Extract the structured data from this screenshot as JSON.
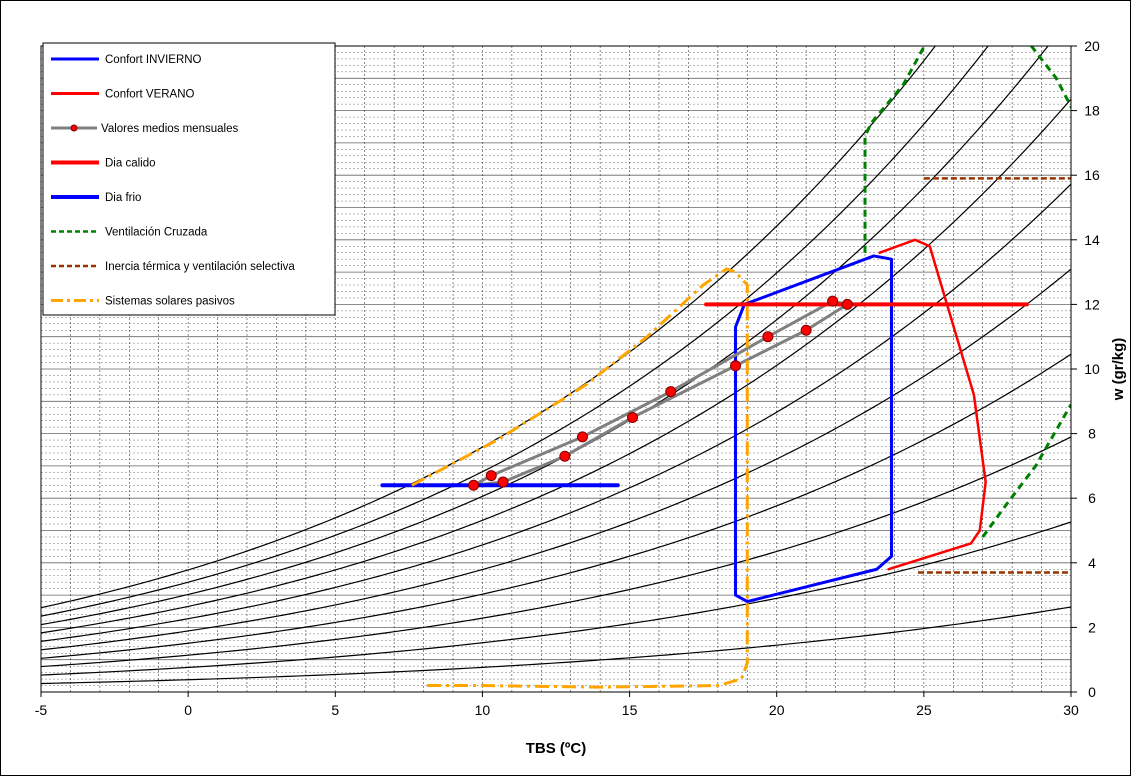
{
  "chart_data": {
    "type": "line",
    "title": "",
    "xlabel": "TBS (ºC)",
    "ylabel": "w (gr/kg)",
    "xlim": [
      -5,
      30
    ],
    "ylim": [
      0,
      20
    ],
    "x_ticks": [
      "-5",
      "0",
      "5",
      "10",
      "15",
      "20",
      "25",
      "30"
    ],
    "y_ticks": [
      "0",
      "2",
      "4",
      "6",
      "8",
      "10",
      "12",
      "14",
      "16",
      "18",
      "20"
    ],
    "grid": true,
    "legend_position": "top-left",
    "legend": [
      {
        "label": "Confort INVIERNO",
        "color": "#0000ff",
        "style": "solid"
      },
      {
        "label": "Confort VERANO",
        "color": "#ff0000",
        "style": "solid"
      },
      {
        "label": "Valores medios mensuales",
        "color": "#808080",
        "style": "marker-line",
        "marker_color": "#ff0000"
      },
      {
        "label": "Dia calido",
        "color": "#ff0000",
        "style": "thick"
      },
      {
        "label": "Dia frio",
        "color": "#0000ff",
        "style": "thick"
      },
      {
        "label": "Ventilación Cruzada",
        "color": "#008000",
        "style": "dashed"
      },
      {
        "label": "Inercia térmica y ventilación selectiva",
        "color": "#993300",
        "style": "dashed"
      },
      {
        "label": "Sistemas solares pasivos",
        "color": "#ffa500",
        "style": "dashdot"
      }
    ],
    "humidity_curves_w_at_0C": [
      0.38,
      0.76,
      1.14,
      1.51,
      1.89,
      2.27,
      2.65,
      3.02,
      3.4,
      3.78
    ],
    "series": [
      {
        "name": "Confort INVIERNO",
        "color": "#0000ff",
        "x": [
          18.6,
          18.6,
          18.9,
          23.3,
          23.9,
          23.9,
          23.4,
          19.0,
          18.6
        ],
        "y": [
          3.0,
          11.3,
          12.0,
          13.5,
          13.4,
          4.2,
          3.8,
          2.8,
          3.0
        ]
      },
      {
        "name": "Confort VERANO",
        "color": "#ff0000",
        "x": [
          23.5,
          24.7,
          25.2,
          26.7,
          27.1,
          26.9,
          26.6,
          23.8
        ],
        "y": [
          13.6,
          14.0,
          13.8,
          9.2,
          6.5,
          5.0,
          4.6,
          3.8
        ]
      },
      {
        "name": "Valores medios mensuales",
        "color": "#808080",
        "x": [
          9.7,
          10.3,
          13.4,
          16.4,
          19.7,
          21.9,
          22.4,
          21.0,
          18.6,
          15.1,
          12.8,
          10.7,
          9.7
        ],
        "y": [
          6.4,
          6.7,
          7.9,
          9.3,
          11.0,
          12.1,
          12.0,
          11.2,
          10.1,
          8.5,
          7.3,
          6.5,
          6.4
        ]
      },
      {
        "name": "Dia calido",
        "color": "#ff0000",
        "x": [
          17.6,
          28.5
        ],
        "y": [
          12.0,
          12.0
        ]
      },
      {
        "name": "Dia frio",
        "color": "#0000ff",
        "x": [
          6.6,
          14.6
        ],
        "y": [
          6.4,
          6.4
        ]
      },
      {
        "name": "Ventilación Cruzada",
        "color": "#008000",
        "x": [
          23.0,
          23.0,
          23.2,
          24.3,
          25.2
        ],
        "y": [
          13.6,
          17.2,
          17.6,
          18.8,
          20.3
        ]
      },
      {
        "name": "Ventilación Cruzada (2)",
        "color": "#008000",
        "x": [
          28.4,
          29.5,
          30.3
        ],
        "y": [
          20.3,
          19.0,
          17.6
        ]
      },
      {
        "name": "Ventilación Cruzada (3)",
        "color": "#008000",
        "x": [
          27.0,
          27.8,
          28.8,
          30.0
        ],
        "y": [
          4.8,
          5.8,
          7.0,
          8.9
        ]
      },
      {
        "name": "Inercia térmica y ventilación selectiva",
        "color": "#993300",
        "x": [
          25.0,
          30.0
        ],
        "y": [
          15.9,
          15.9
        ]
      },
      {
        "name": "Inercia térmica y ventilación selectiva (2)",
        "color": "#993300",
        "x": [
          24.8,
          30.0
        ],
        "y": [
          3.7,
          3.7
        ]
      },
      {
        "name": "Sistemas solares pasivos",
        "color": "#ffa500",
        "x": [
          7.6,
          10.5,
          13.5,
          15.6,
          17.5,
          18.3,
          18.6,
          19.0,
          19.0,
          18.8,
          18.0,
          14.0,
          10.0,
          8.1
        ],
        "y": [
          6.4,
          7.8,
          9.5,
          11.0,
          12.6,
          13.1,
          13.0,
          12.6,
          0.9,
          0.4,
          0.2,
          0.15,
          0.2,
          0.2
        ]
      }
    ],
    "points": {
      "name": "Valores medios mensuales",
      "color": "#ff0000",
      "x": [
        9.7,
        10.3,
        10.7,
        12.8,
        13.4,
        15.1,
        16.4,
        18.6,
        19.7,
        21.0,
        21.9,
        22.4
      ],
      "y": [
        6.4,
        6.7,
        6.5,
        7.3,
        7.9,
        8.5,
        9.3,
        10.1,
        11.0,
        11.2,
        12.1,
        12.0
      ]
    }
  }
}
